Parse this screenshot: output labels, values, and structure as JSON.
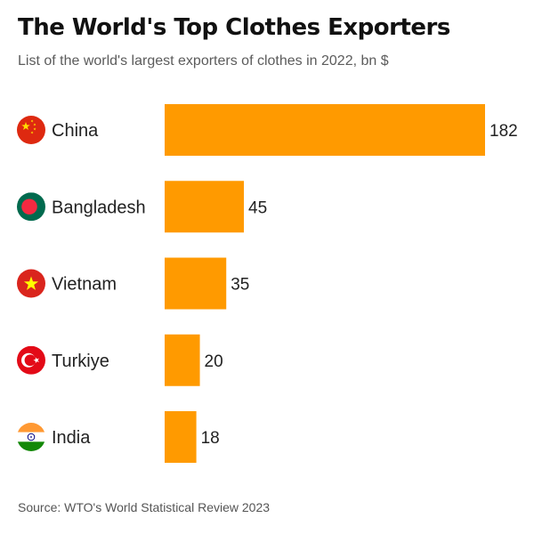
{
  "header": {
    "title": "The World's Top Clothes Exporters",
    "subtitle": "List of the world's largest exporters of clothes in 2022, bn $"
  },
  "footer": {
    "source": "Source: WTO's World Statistical Review 2023"
  },
  "colors": {
    "bar": "#FF9A00",
    "label_text": "#222222",
    "value_text": "#222222"
  },
  "chart_data": {
    "type": "bar",
    "orientation": "horizontal",
    "title": "The World's Top Clothes Exporters",
    "subtitle": "List of the world's largest exporters of clothes in 2022, bn $",
    "categories": [
      "China",
      "Bangladesh",
      "Vietnam",
      "Turkiye",
      "India"
    ],
    "values": [
      182,
      45,
      35,
      20,
      18
    ],
    "value_labels": [
      "182",
      "45",
      "35",
      "20",
      "18"
    ],
    "icons": [
      "china-flag-icon",
      "bangladesh-flag-icon",
      "vietnam-flag-icon",
      "turkiye-flag-icon",
      "india-flag-icon"
    ],
    "xlim": [
      0,
      182
    ],
    "grid": false,
    "legend": "none",
    "source": "Source: WTO's World Statistical Review 2023"
  }
}
